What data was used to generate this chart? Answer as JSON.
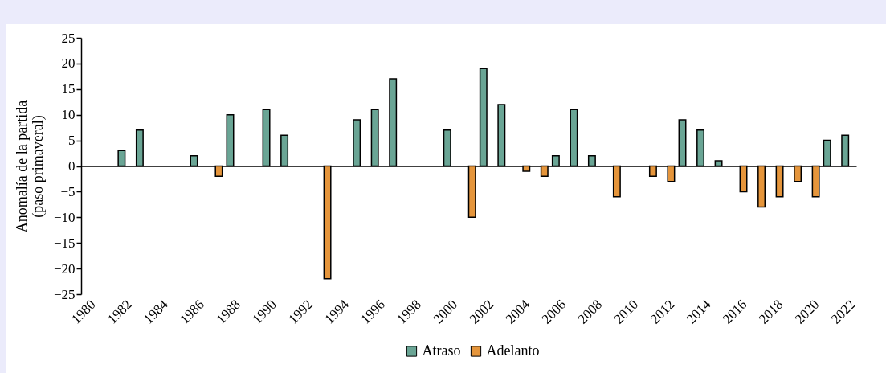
{
  "chart_data": {
    "type": "bar",
    "ylabel": "Anomalía de la partida\n(paso primaveral)",
    "categories": [
      "1980",
      null,
      "1982",
      null,
      "1984",
      null,
      "1986",
      null,
      "1988",
      null,
      "1990",
      null,
      "1992",
      null,
      "1994",
      null,
      "1996",
      null,
      "1998",
      null,
      "2000",
      null,
      "2002",
      null,
      "2004",
      null,
      "2006",
      null,
      "2008",
      null,
      "2010",
      null,
      "2012",
      null,
      "2014",
      null,
      "2016",
      null,
      "2018",
      null,
      "2020",
      null,
      "2022"
    ],
    "series": [
      {
        "name": "Atraso",
        "color": "#6aa595",
        "values": [
          null,
          null,
          3,
          7,
          null,
          null,
          2,
          null,
          10,
          null,
          11,
          6,
          null,
          null,
          null,
          9,
          11,
          17,
          null,
          null,
          7,
          null,
          19,
          12,
          null,
          null,
          2,
          11,
          2,
          null,
          null,
          null,
          null,
          9,
          7,
          1,
          null,
          null,
          null,
          null,
          null,
          5,
          6
        ]
      },
      {
        "name": "Adelanto",
        "color": "#e5953b",
        "values": [
          null,
          null,
          null,
          null,
          null,
          null,
          null,
          -2,
          null,
          null,
          null,
          null,
          null,
          -22,
          null,
          null,
          null,
          null,
          null,
          null,
          null,
          -10,
          null,
          null,
          -1,
          -2,
          null,
          null,
          null,
          -6,
          null,
          -2,
          -3,
          null,
          null,
          null,
          -5,
          -8,
          -6,
          -3,
          -6,
          null,
          null
        ]
      }
    ],
    "ylim": [
      -25,
      25
    ],
    "yticks": [
      -25,
      -20,
      -15,
      -10,
      -5,
      0,
      5,
      10,
      15,
      20,
      25
    ],
    "legend": "bottom"
  }
}
